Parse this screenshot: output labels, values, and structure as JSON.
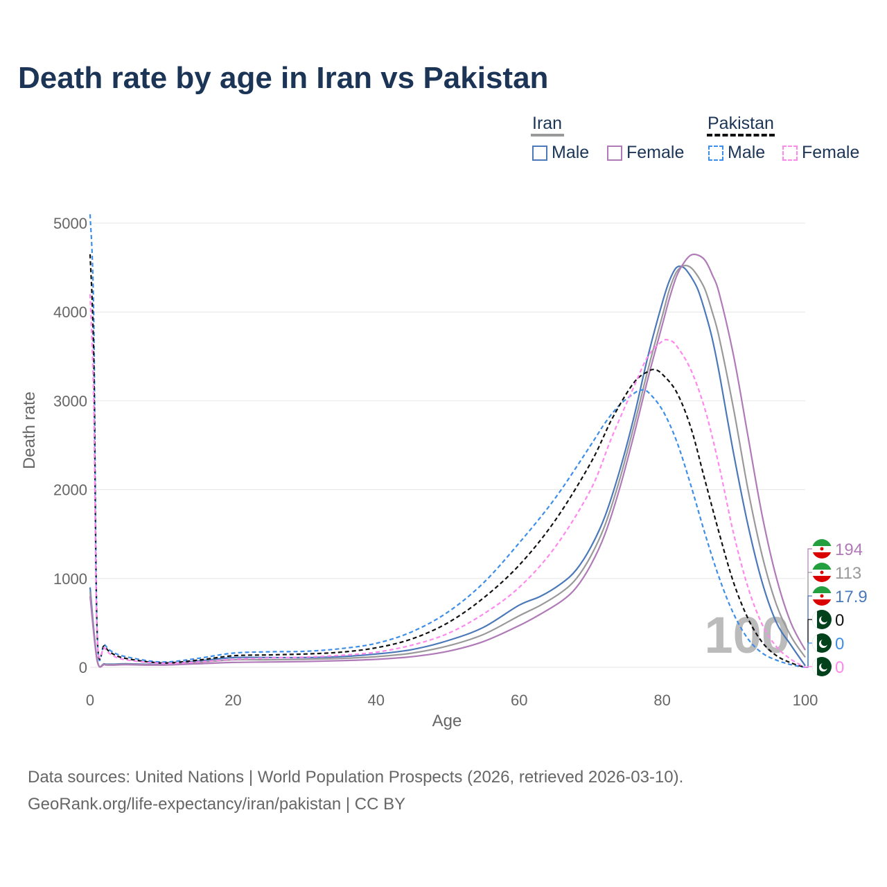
{
  "title": "Death rate by age in Iran vs Pakistan",
  "legend": {
    "groups": [
      {
        "name": "Iran",
        "line_color": "#999999",
        "dashed": false,
        "items": [
          {
            "label": "Male",
            "color": "#4a78b8"
          },
          {
            "label": "Female",
            "color": "#b07ab8"
          }
        ]
      },
      {
        "name": "Pakistan",
        "line_color": "#111111",
        "dashed": true,
        "items": [
          {
            "label": "Male",
            "color": "#3d8ee8"
          },
          {
            "label": "Female",
            "color": "#ff88ee"
          }
        ]
      }
    ]
  },
  "year_watermark": "100",
  "end_labels": [
    {
      "value": "194",
      "color": "#b07ab8",
      "flag": "iran-flag-icon"
    },
    {
      "value": "113",
      "color": "#999999",
      "flag": "iran-flag-icon"
    },
    {
      "value": "17.9",
      "color": "#4a78b8",
      "flag": "iran-flag-icon"
    },
    {
      "value": "0",
      "color": "#111111",
      "flag": "pakistan-flag-icon"
    },
    {
      "value": "0",
      "color": "#3d8ee8",
      "flag": "pakistan-flag-icon"
    },
    {
      "value": "0",
      "color": "#ff88ee",
      "flag": "pakistan-flag-icon"
    }
  ],
  "sources": {
    "line1": "Data sources: United Nations | World Population Prospects (2026, retrieved 2026-03-10).",
    "line2": "GeoRank.org/life-expectancy/iran/pakistan | CC BY"
  },
  "chart_data": {
    "type": "line",
    "title": "Death rate by age in Iran vs Pakistan",
    "xlabel": "Age",
    "ylabel": "Death rate",
    "xlim": [
      0,
      100
    ],
    "ylim": [
      0,
      5000
    ],
    "x_ticks": [
      0,
      20,
      40,
      60,
      80,
      100
    ],
    "y_ticks": [
      0,
      1000,
      2000,
      3000,
      4000,
      5000
    ],
    "grid": true,
    "series": [
      {
        "name": "Iran Male",
        "color": "#4a78b8",
        "dashed": false,
        "points": [
          [
            0,
            900
          ],
          [
            1,
            80
          ],
          [
            2,
            40
          ],
          [
            3,
            35
          ],
          [
            5,
            40
          ],
          [
            10,
            35
          ],
          [
            15,
            70
          ],
          [
            20,
            110
          ],
          [
            25,
            110
          ],
          [
            30,
            110
          ],
          [
            35,
            120
          ],
          [
            40,
            150
          ],
          [
            45,
            200
          ],
          [
            50,
            300
          ],
          [
            55,
            450
          ],
          [
            60,
            700
          ],
          [
            63,
            800
          ],
          [
            66,
            950
          ],
          [
            68,
            1100
          ],
          [
            70,
            1350
          ],
          [
            72,
            1700
          ],
          [
            74,
            2200
          ],
          [
            76,
            2800
          ],
          [
            78,
            3500
          ],
          [
            80,
            4100
          ],
          [
            81,
            4350
          ],
          [
            82,
            4500
          ],
          [
            83,
            4500
          ],
          [
            84,
            4400
          ],
          [
            85,
            4250
          ],
          [
            86,
            4000
          ],
          [
            87,
            3700
          ],
          [
            88,
            3300
          ],
          [
            90,
            2400
          ],
          [
            92,
            1600
          ],
          [
            94,
            950
          ],
          [
            96,
            500
          ],
          [
            98,
            250
          ],
          [
            100,
            17.9
          ]
        ]
      },
      {
        "name": "Iran Total",
        "color": "#999999",
        "dashed": false,
        "points": [
          [
            0,
            850
          ],
          [
            1,
            75
          ],
          [
            2,
            35
          ],
          [
            3,
            30
          ],
          [
            5,
            35
          ],
          [
            10,
            30
          ],
          [
            15,
            55
          ],
          [
            20,
            85
          ],
          [
            25,
            85
          ],
          [
            30,
            90
          ],
          [
            35,
            100
          ],
          [
            40,
            120
          ],
          [
            45,
            160
          ],
          [
            50,
            240
          ],
          [
            55,
            370
          ],
          [
            60,
            580
          ],
          [
            63,
            700
          ],
          [
            66,
            850
          ],
          [
            68,
            1000
          ],
          [
            70,
            1250
          ],
          [
            72,
            1600
          ],
          [
            74,
            2100
          ],
          [
            76,
            2700
          ],
          [
            78,
            3350
          ],
          [
            80,
            3950
          ],
          [
            81,
            4250
          ],
          [
            82,
            4450
          ],
          [
            83,
            4520
          ],
          [
            84,
            4500
          ],
          [
            85,
            4400
          ],
          [
            86,
            4250
          ],
          [
            87,
            4000
          ],
          [
            88,
            3700
          ],
          [
            90,
            2900
          ],
          [
            92,
            2000
          ],
          [
            94,
            1250
          ],
          [
            96,
            700
          ],
          [
            98,
            350
          ],
          [
            100,
            113
          ]
        ]
      },
      {
        "name": "Iran Female",
        "color": "#b07ab8",
        "dashed": false,
        "points": [
          [
            0,
            800
          ],
          [
            1,
            70
          ],
          [
            2,
            30
          ],
          [
            3,
            25
          ],
          [
            5,
            30
          ],
          [
            10,
            25
          ],
          [
            15,
            40
          ],
          [
            20,
            55
          ],
          [
            25,
            60
          ],
          [
            30,
            65
          ],
          [
            35,
            75
          ],
          [
            40,
            90
          ],
          [
            45,
            120
          ],
          [
            50,
            180
          ],
          [
            55,
            290
          ],
          [
            60,
            470
          ],
          [
            63,
            600
          ],
          [
            66,
            750
          ],
          [
            68,
            900
          ],
          [
            70,
            1150
          ],
          [
            72,
            1500
          ],
          [
            74,
            2000
          ],
          [
            76,
            2600
          ],
          [
            78,
            3250
          ],
          [
            80,
            3850
          ],
          [
            81,
            4150
          ],
          [
            82,
            4400
          ],
          [
            83,
            4550
          ],
          [
            84,
            4640
          ],
          [
            85,
            4640
          ],
          [
            86,
            4580
          ],
          [
            87,
            4420
          ],
          [
            88,
            4200
          ],
          [
            90,
            3500
          ],
          [
            92,
            2600
          ],
          [
            94,
            1700
          ],
          [
            96,
            1000
          ],
          [
            98,
            500
          ],
          [
            100,
            194
          ]
        ]
      },
      {
        "name": "Pakistan Male",
        "color": "#3d8ee8",
        "dashed": true,
        "points": [
          [
            0,
            5100
          ],
          [
            0.5,
            4000
          ],
          [
            1,
            380
          ],
          [
            2,
            260
          ],
          [
            3,
            180
          ],
          [
            5,
            120
          ],
          [
            10,
            60
          ],
          [
            15,
            100
          ],
          [
            20,
            160
          ],
          [
            25,
            175
          ],
          [
            30,
            180
          ],
          [
            35,
            210
          ],
          [
            40,
            270
          ],
          [
            45,
            400
          ],
          [
            50,
            620
          ],
          [
            55,
            950
          ],
          [
            60,
            1400
          ],
          [
            65,
            1900
          ],
          [
            70,
            2500
          ],
          [
            72,
            2750
          ],
          [
            74,
            2950
          ],
          [
            76,
            3080
          ],
          [
            77,
            3120
          ],
          [
            78,
            3100
          ],
          [
            80,
            2900
          ],
          [
            82,
            2550
          ],
          [
            84,
            2050
          ],
          [
            86,
            1500
          ],
          [
            88,
            1000
          ],
          [
            90,
            600
          ],
          [
            92,
            320
          ],
          [
            94,
            160
          ],
          [
            96,
            80
          ],
          [
            98,
            30
          ],
          [
            100,
            0
          ]
        ]
      },
      {
        "name": "Pakistan Total",
        "color": "#111111",
        "dashed": true,
        "points": [
          [
            0,
            4650
          ],
          [
            0.5,
            3500
          ],
          [
            1,
            360
          ],
          [
            2,
            240
          ],
          [
            3,
            160
          ],
          [
            5,
            100
          ],
          [
            10,
            50
          ],
          [
            15,
            80
          ],
          [
            20,
            130
          ],
          [
            25,
            140
          ],
          [
            30,
            150
          ],
          [
            35,
            170
          ],
          [
            40,
            220
          ],
          [
            45,
            320
          ],
          [
            50,
            500
          ],
          [
            55,
            780
          ],
          [
            60,
            1150
          ],
          [
            65,
            1650
          ],
          [
            70,
            2300
          ],
          [
            73,
            2800
          ],
          [
            76,
            3200
          ],
          [
            78,
            3330
          ],
          [
            79,
            3350
          ],
          [
            80,
            3300
          ],
          [
            82,
            3100
          ],
          [
            84,
            2700
          ],
          [
            86,
            2100
          ],
          [
            88,
            1500
          ],
          [
            90,
            950
          ],
          [
            92,
            550
          ],
          [
            94,
            280
          ],
          [
            96,
            130
          ],
          [
            98,
            50
          ],
          [
            100,
            0
          ]
        ]
      },
      {
        "name": "Pakistan Female",
        "color": "#ff88ee",
        "dashed": true,
        "points": [
          [
            0,
            4200
          ],
          [
            0.5,
            3000
          ],
          [
            1,
            340
          ],
          [
            2,
            220
          ],
          [
            3,
            140
          ],
          [
            5,
            85
          ],
          [
            10,
            45
          ],
          [
            15,
            60
          ],
          [
            20,
            90
          ],
          [
            25,
            105
          ],
          [
            30,
            115
          ],
          [
            35,
            135
          ],
          [
            40,
            170
          ],
          [
            45,
            250
          ],
          [
            50,
            380
          ],
          [
            55,
            600
          ],
          [
            60,
            900
          ],
          [
            65,
            1350
          ],
          [
            70,
            2000
          ],
          [
            73,
            2600
          ],
          [
            76,
            3150
          ],
          [
            78,
            3500
          ],
          [
            80,
            3670
          ],
          [
            81,
            3680
          ],
          [
            82,
            3620
          ],
          [
            84,
            3350
          ],
          [
            86,
            2900
          ],
          [
            88,
            2250
          ],
          [
            90,
            1500
          ],
          [
            92,
            900
          ],
          [
            94,
            480
          ],
          [
            96,
            230
          ],
          [
            98,
            90
          ],
          [
            100,
            0
          ]
        ]
      }
    ]
  }
}
